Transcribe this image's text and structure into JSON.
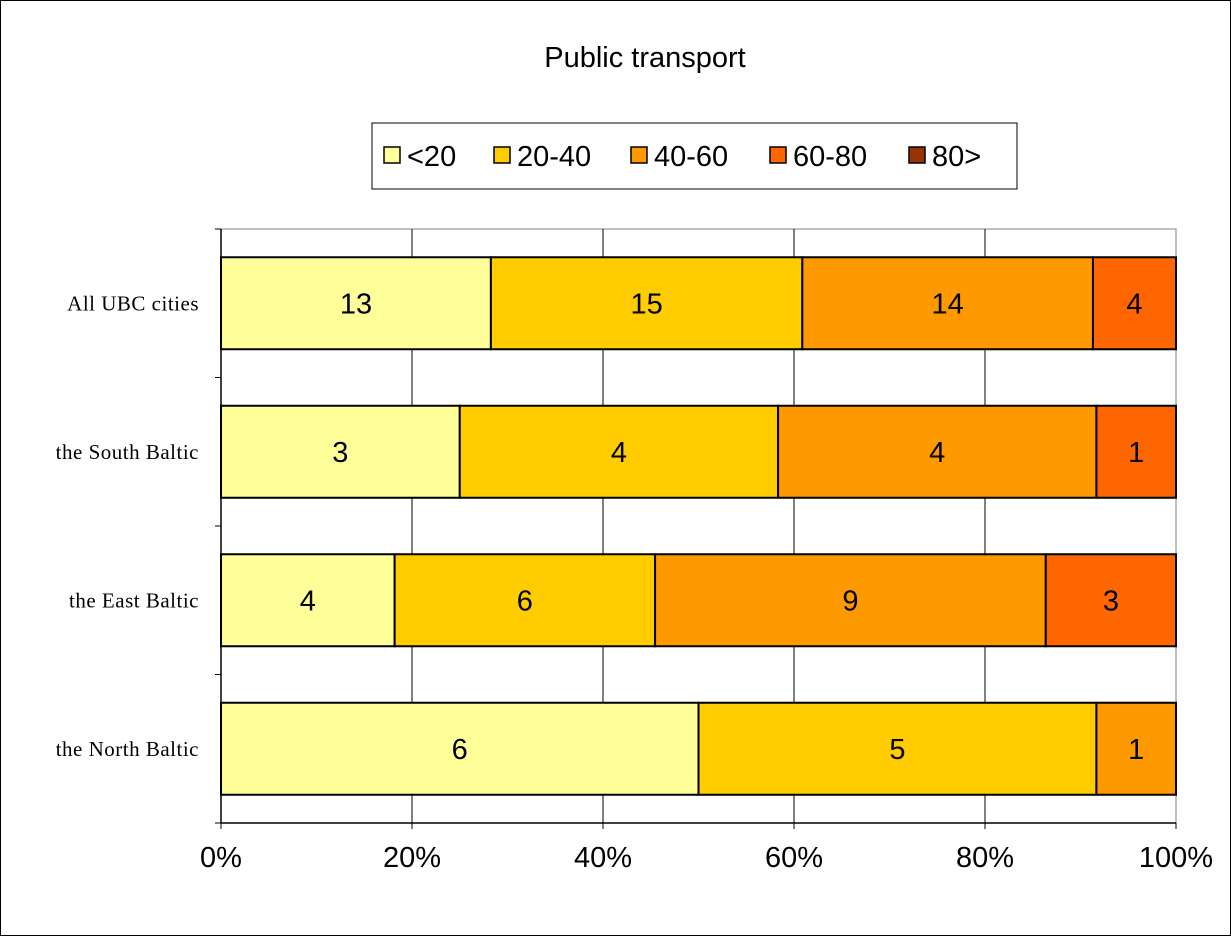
{
  "chart_data": {
    "type": "bar",
    "orientation": "horizontal",
    "stacked": "percent",
    "title": "Public transport",
    "categories": [
      "All UBC cities",
      "the South Baltic",
      "the East Baltic",
      "the North Baltic"
    ],
    "series": [
      {
        "name": "<20",
        "color": "#ffff99",
        "values": [
          13,
          3,
          4,
          6
        ]
      },
      {
        "name": "20-40",
        "color": "#ffcc00",
        "values": [
          15,
          4,
          6,
          5
        ]
      },
      {
        "name": "40-60",
        "color": "#ff9900",
        "values": [
          14,
          4,
          9,
          1
        ]
      },
      {
        "name": "60-80",
        "color": "#ff6600",
        "values": [
          4,
          1,
          3,
          0
        ]
      },
      {
        "name": "80>",
        "color": "#993300",
        "values": [
          0,
          0,
          0,
          0
        ]
      }
    ],
    "x_ticks": [
      "0%",
      "20%",
      "40%",
      "60%",
      "80%",
      "100%"
    ],
    "xlim": [
      0,
      100
    ],
    "grid": true,
    "legend_position": "top"
  }
}
